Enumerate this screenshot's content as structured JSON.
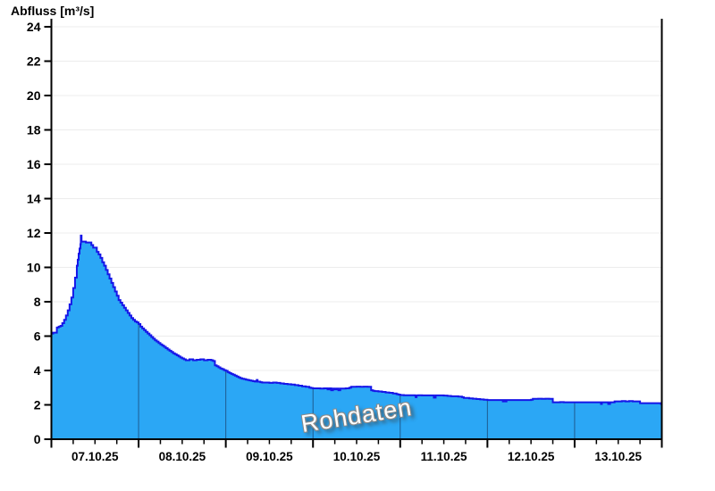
{
  "chart_data": {
    "type": "area",
    "title": "Abfluss [m³/s]",
    "ylabel": "Abfluss [m³/s]",
    "watermark": "Rohdaten",
    "ylim": [
      0,
      24
    ],
    "y_tick_step": 2,
    "y_ticks": [
      0,
      2,
      4,
      6,
      8,
      10,
      12,
      14,
      16,
      18,
      20,
      22,
      24
    ],
    "x_tick_labels": [
      "07.10.25",
      "08.10.25",
      "09.10.25",
      "10.10.25",
      "11.10.25",
      "12.10.25",
      "13.10.25"
    ],
    "x_total_hours": 168,
    "hours_per_day": 24,
    "x_minor_tick_hours": 6,
    "grid": "horizontal-only",
    "legend": "none",
    "colors": {
      "fill": "#2ba7f5",
      "line": "#1616e8",
      "grid": "#ececec",
      "axis": "#000000",
      "day_divider": "rgba(20,30,60,0.55)",
      "watermark_text": "#ffffff"
    },
    "series_step_points": [
      [
        0,
        6.15
      ],
      [
        0.5,
        6.2
      ],
      [
        1,
        6.2
      ],
      [
        1.5,
        6.5
      ],
      [
        2,
        6.55
      ],
      [
        2.5,
        6.6
      ],
      [
        3,
        6.75
      ],
      [
        3.5,
        6.95
      ],
      [
        4,
        7.2
      ],
      [
        4.5,
        7.5
      ],
      [
        5,
        7.85
      ],
      [
        5.5,
        8.25
      ],
      [
        6,
        8.8
      ],
      [
        6.5,
        9.4
      ],
      [
        7,
        10.1
      ],
      [
        7.25,
        10.45
      ],
      [
        7.5,
        10.8
      ],
      [
        7.75,
        11.1
      ],
      [
        8,
        11.35
      ],
      [
        8.1,
        11.85
      ],
      [
        8.3,
        11.5
      ],
      [
        9,
        11.5
      ],
      [
        9.5,
        11.45
      ],
      [
        10.5,
        11.45
      ],
      [
        11,
        11.3
      ],
      [
        11.5,
        11.15
      ],
      [
        12,
        11.15
      ],
      [
        12.5,
        10.9
      ],
      [
        13,
        10.75
      ],
      [
        13.5,
        10.55
      ],
      [
        14,
        10.3
      ],
      [
        14.5,
        10.1
      ],
      [
        15,
        9.85
      ],
      [
        15.5,
        9.6
      ],
      [
        16,
        9.35
      ],
      [
        16.5,
        9.1
      ],
      [
        17,
        8.85
      ],
      [
        17.5,
        8.6
      ],
      [
        18,
        8.35
      ],
      [
        18.5,
        8.1
      ],
      [
        19,
        7.95
      ],
      [
        19.5,
        7.8
      ],
      [
        20,
        7.65
      ],
      [
        20.5,
        7.5
      ],
      [
        21,
        7.35
      ],
      [
        21.5,
        7.2
      ],
      [
        22,
        7.05
      ],
      [
        22.5,
        6.95
      ],
      [
        23,
        6.85
      ],
      [
        23.5,
        6.8
      ],
      [
        24,
        6.7
      ],
      [
        24.5,
        6.55
      ],
      [
        25,
        6.45
      ],
      [
        25.5,
        6.35
      ],
      [
        26,
        6.25
      ],
      [
        26.5,
        6.15
      ],
      [
        27,
        6.05
      ],
      [
        27.5,
        5.95
      ],
      [
        28,
        5.85
      ],
      [
        28.5,
        5.75
      ],
      [
        29,
        5.68
      ],
      [
        29.5,
        5.6
      ],
      [
        30,
        5.52
      ],
      [
        30.5,
        5.45
      ],
      [
        31,
        5.38
      ],
      [
        31.5,
        5.3
      ],
      [
        32,
        5.22
      ],
      [
        32.5,
        5.15
      ],
      [
        33,
        5.08
      ],
      [
        33.5,
        5.0
      ],
      [
        34,
        4.95
      ],
      [
        34.5,
        4.88
      ],
      [
        35,
        4.82
      ],
      [
        35.5,
        4.75
      ],
      [
        36,
        4.7
      ],
      [
        36.5,
        4.65
      ],
      [
        37,
        4.6
      ],
      [
        38,
        4.65
      ],
      [
        39,
        4.6
      ],
      [
        40,
        4.62
      ],
      [
        41,
        4.65
      ],
      [
        42,
        4.6
      ],
      [
        43,
        4.62
      ],
      [
        44,
        4.6
      ],
      [
        44.5,
        4.55
      ],
      [
        45,
        4.3
      ],
      [
        45.5,
        4.25
      ],
      [
        46,
        4.18
      ],
      [
        46.5,
        4.12
      ],
      [
        47,
        4.08
      ],
      [
        47.5,
        4.02
      ],
      [
        48,
        3.98
      ],
      [
        48.5,
        3.9
      ],
      [
        49,
        3.85
      ],
      [
        49.5,
        3.8
      ],
      [
        50,
        3.75
      ],
      [
        50.5,
        3.7
      ],
      [
        51,
        3.65
      ],
      [
        51.5,
        3.6
      ],
      [
        52,
        3.55
      ],
      [
        52.5,
        3.52
      ],
      [
        53,
        3.5
      ],
      [
        53.5,
        3.47
      ],
      [
        54,
        3.45
      ],
      [
        54.5,
        3.42
      ],
      [
        55,
        3.4
      ],
      [
        55.5,
        3.38
      ],
      [
        56,
        3.36
      ],
      [
        56.5,
        3.45
      ],
      [
        56.75,
        3.35
      ],
      [
        57.5,
        3.32
      ],
      [
        58,
        3.3
      ],
      [
        59,
        3.3
      ],
      [
        60,
        3.28
      ],
      [
        61,
        3.3
      ],
      [
        62,
        3.28
      ],
      [
        63,
        3.25
      ],
      [
        64,
        3.22
      ],
      [
        65,
        3.2
      ],
      [
        66,
        3.18
      ],
      [
        67,
        3.15
      ],
      [
        68,
        3.12
      ],
      [
        69,
        3.08
      ],
      [
        70,
        3.05
      ],
      [
        71,
        3.0
      ],
      [
        71.5,
        2.98
      ],
      [
        72,
        2.96
      ],
      [
        73,
        2.96
      ],
      [
        74,
        2.95
      ],
      [
        75,
        2.96
      ],
      [
        76,
        2.9
      ],
      [
        76.5,
        2.96
      ],
      [
        77,
        2.85
      ],
      [
        77.5,
        2.95
      ],
      [
        78,
        2.9
      ],
      [
        78.5,
        2.95
      ],
      [
        79,
        2.85
      ],
      [
        79.5,
        2.95
      ],
      [
        80,
        2.95
      ],
      [
        81,
        2.96
      ],
      [
        82,
        3.0
      ],
      [
        82.5,
        3.05
      ],
      [
        83,
        3.05
      ],
      [
        84,
        3.06
      ],
      [
        85,
        3.05
      ],
      [
        86,
        3.06
      ],
      [
        87,
        3.05
      ],
      [
        87.5,
        3.05
      ],
      [
        88,
        2.85
      ],
      [
        88.5,
        2.82
      ],
      [
        89,
        2.8
      ],
      [
        90,
        2.78
      ],
      [
        91,
        2.75
      ],
      [
        92,
        2.72
      ],
      [
        93,
        2.7
      ],
      [
        94,
        2.66
      ],
      [
        95,
        2.62
      ],
      [
        95.5,
        2.6
      ],
      [
        96,
        2.57
      ],
      [
        97,
        2.56
      ],
      [
        98,
        2.56
      ],
      [
        99,
        2.56
      ],
      [
        100,
        2.55
      ],
      [
        100.25,
        2.45
      ],
      [
        100.5,
        2.55
      ],
      [
        101,
        2.56
      ],
      [
        102,
        2.55
      ],
      [
        103,
        2.55
      ],
      [
        104,
        2.55
      ],
      [
        105,
        2.55
      ],
      [
        105.25,
        2.42
      ],
      [
        105.75,
        2.55
      ],
      [
        106,
        2.55
      ],
      [
        107,
        2.55
      ],
      [
        108,
        2.54
      ],
      [
        109,
        2.52
      ],
      [
        110,
        2.5
      ],
      [
        111,
        2.5
      ],
      [
        112,
        2.48
      ],
      [
        113,
        2.45
      ],
      [
        113.5,
        2.4
      ],
      [
        114,
        2.4
      ],
      [
        115,
        2.38
      ],
      [
        116,
        2.36
      ],
      [
        117,
        2.34
      ],
      [
        118,
        2.32
      ],
      [
        119,
        2.3
      ],
      [
        120,
        2.28
      ],
      [
        121,
        2.28
      ],
      [
        122,
        2.28
      ],
      [
        123,
        2.28
      ],
      [
        124,
        2.28
      ],
      [
        124.25,
        2.2
      ],
      [
        124.5,
        2.28
      ],
      [
        125,
        2.2
      ],
      [
        125.25,
        2.28
      ],
      [
        126,
        2.28
      ],
      [
        127,
        2.28
      ],
      [
        128,
        2.28
      ],
      [
        129,
        2.28
      ],
      [
        130,
        2.28
      ],
      [
        131,
        2.28
      ],
      [
        132,
        2.3
      ],
      [
        132.5,
        2.35
      ],
      [
        133,
        2.35
      ],
      [
        134,
        2.36
      ],
      [
        135,
        2.35
      ],
      [
        136,
        2.36
      ],
      [
        137,
        2.35
      ],
      [
        137.5,
        2.35
      ],
      [
        138,
        2.15
      ],
      [
        139,
        2.15
      ],
      [
        140,
        2.16
      ],
      [
        141,
        2.15
      ],
      [
        142,
        2.15
      ],
      [
        143,
        2.15
      ],
      [
        144,
        2.15
      ],
      [
        145,
        2.15
      ],
      [
        146,
        2.15
      ],
      [
        147,
        2.15
      ],
      [
        148,
        2.15
      ],
      [
        149,
        2.15
      ],
      [
        150,
        2.15
      ],
      [
        151,
        2.15
      ],
      [
        151.25,
        2.05
      ],
      [
        151.5,
        2.15
      ],
      [
        152,
        2.15
      ],
      [
        153,
        2.15
      ],
      [
        153.25,
        2.05
      ],
      [
        153.75,
        2.15
      ],
      [
        154,
        2.15
      ],
      [
        155,
        2.2
      ],
      [
        156,
        2.2
      ],
      [
        157,
        2.22
      ],
      [
        158,
        2.2
      ],
      [
        159,
        2.22
      ],
      [
        160,
        2.2
      ],
      [
        161,
        2.2
      ],
      [
        162,
        2.1
      ],
      [
        163,
        2.1
      ],
      [
        164,
        2.1
      ],
      [
        165,
        2.1
      ],
      [
        166,
        2.1
      ],
      [
        167,
        2.1
      ],
      [
        167.75,
        2.05
      ],
      [
        168,
        2.05
      ]
    ]
  }
}
